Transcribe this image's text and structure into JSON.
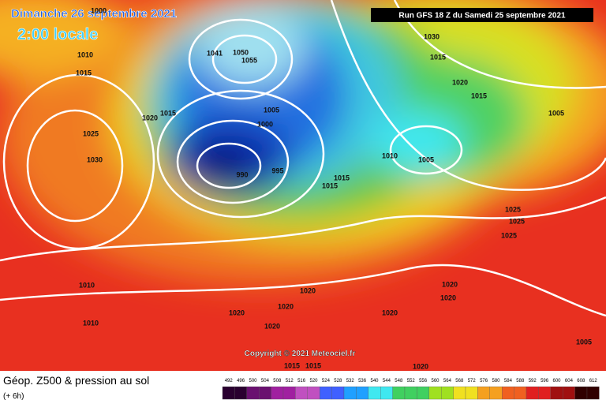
{
  "header": {
    "title": "Dimanche 26 septembre 2021",
    "subtitle": "2:00 locale",
    "run": "Run GFS 18 Z du Samedi 25 septembre 2021"
  },
  "map": {
    "copyright": "Copyright © 2021 Meteociel.fr",
    "isobar_labels": [
      "1000",
      "1010",
      "1015",
      "1020",
      "1015",
      "1025",
      "1030",
      "1041",
      "1050",
      "1055",
      "1005",
      "1000",
      "990",
      "995",
      "1015",
      "1015",
      "1010",
      "1005",
      "1030",
      "1015",
      "1020",
      "1015",
      "1005",
      "1025",
      "1025",
      "1025",
      "1010",
      "1010",
      "1020",
      "1020",
      "1020",
      "1020",
      "1020",
      "1020",
      "1020",
      "1005",
      "1015",
      "1015",
      "1020"
    ]
  },
  "footer": {
    "title": "Géop. Z500 & pression au sol",
    "subtitle": "(+ 6h)"
  },
  "legend": {
    "labels": [
      492,
      496,
      500,
      504,
      508,
      512,
      516,
      520,
      524,
      528,
      532,
      536,
      540,
      544,
      548,
      552,
      556,
      560,
      564,
      568,
      572,
      576,
      580,
      584,
      588,
      592,
      596,
      600,
      604,
      608,
      612
    ]
  }
}
